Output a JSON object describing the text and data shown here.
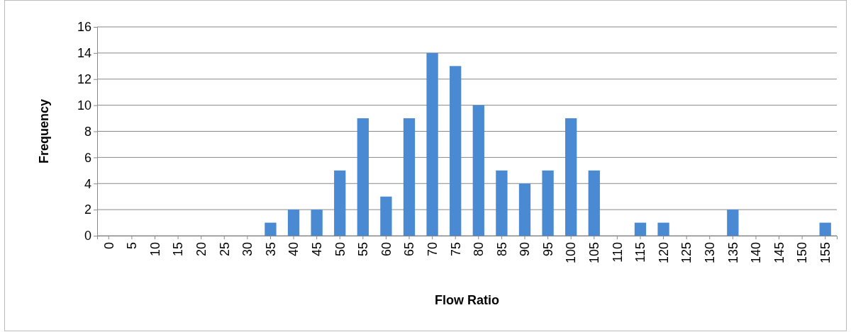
{
  "chart_data": {
    "type": "bar",
    "xlabel": "Flow Ratio",
    "ylabel": "Frequency",
    "categories": [
      "0",
      "5",
      "10",
      "15",
      "20",
      "25",
      "30",
      "35",
      "40",
      "45",
      "50",
      "55",
      "60",
      "65",
      "70",
      "75",
      "80",
      "85",
      "90",
      "95",
      "100",
      "105",
      "110",
      "115",
      "120",
      "125",
      "130",
      "135",
      "140",
      "145",
      "150",
      "155"
    ],
    "values": [
      0,
      0,
      0,
      0,
      0,
      0,
      0,
      1,
      2,
      2,
      5,
      9,
      3,
      9,
      14,
      13,
      10,
      5,
      4,
      5,
      9,
      5,
      0,
      1,
      1,
      0,
      0,
      2,
      0,
      0,
      0,
      1
    ],
    "color": "#4a8ad3",
    "ylim": [
      0,
      16
    ],
    "yticks": [
      0,
      2,
      4,
      6,
      8,
      10,
      12,
      14,
      16
    ],
    "grid": "y"
  }
}
